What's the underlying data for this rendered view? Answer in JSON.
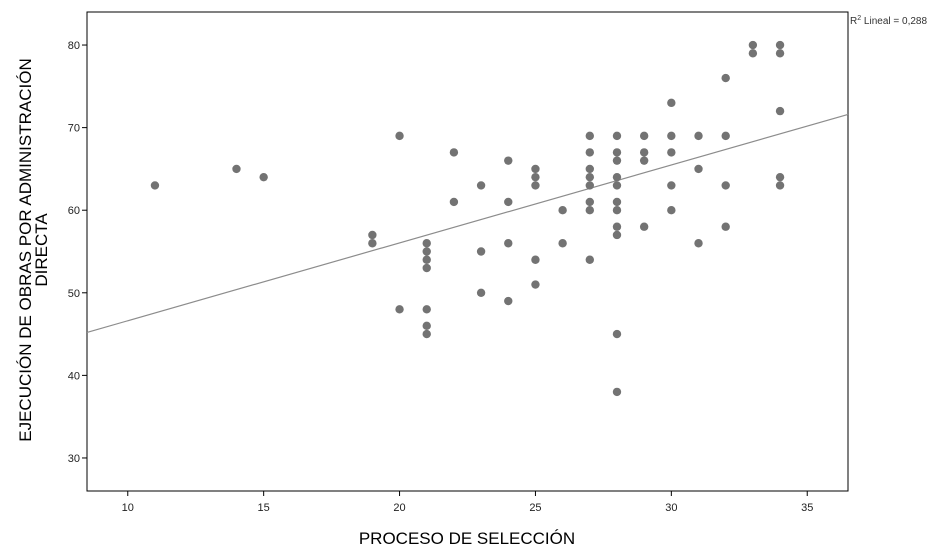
{
  "chart_data": {
    "type": "scatter",
    "xlabel": "PROCESO DE SELECCIÓN",
    "ylabel_lines": [
      "EJECUCIÓN DE OBRAS POR ADMINISTRACIÓN",
      "DIRECTA"
    ],
    "xlim": [
      8.5,
      36.5
    ],
    "ylim": [
      26,
      84
    ],
    "x_ticks": [
      10,
      15,
      20,
      25,
      30,
      35
    ],
    "y_ticks": [
      30,
      40,
      50,
      60,
      70,
      80
    ],
    "grid": false,
    "annotation": {
      "prefix": "R",
      "superscript": "2",
      "text": " Lineal = 0,288"
    },
    "fit_line": {
      "x_start": 8.5,
      "y_start": 45.2,
      "x_end": 36.5,
      "y_end": 71.6
    },
    "points": [
      [
        11,
        63
      ],
      [
        14,
        65
      ],
      [
        15,
        64
      ],
      [
        19,
        57
      ],
      [
        19,
        56
      ],
      [
        20,
        69
      ],
      [
        20,
        48
      ],
      [
        21,
        56
      ],
      [
        21,
        55
      ],
      [
        21,
        54
      ],
      [
        21,
        53
      ],
      [
        21,
        48
      ],
      [
        21,
        46
      ],
      [
        21,
        45
      ],
      [
        22,
        67
      ],
      [
        22,
        61
      ],
      [
        23,
        63
      ],
      [
        23,
        55
      ],
      [
        23,
        50
      ],
      [
        24,
        66
      ],
      [
        24,
        61
      ],
      [
        24,
        56
      ],
      [
        24,
        49
      ],
      [
        25,
        65
      ],
      [
        25,
        64
      ],
      [
        25,
        63
      ],
      [
        25,
        54
      ],
      [
        25,
        51
      ],
      [
        26,
        60
      ],
      [
        26,
        56
      ],
      [
        27,
        69
      ],
      [
        27,
        67
      ],
      [
        27,
        65
      ],
      [
        27,
        64
      ],
      [
        27,
        63
      ],
      [
        27,
        61
      ],
      [
        27,
        60
      ],
      [
        27,
        54
      ],
      [
        28,
        69
      ],
      [
        28,
        67
      ],
      [
        28,
        66
      ],
      [
        28,
        64
      ],
      [
        28,
        63
      ],
      [
        28,
        61
      ],
      [
        28,
        60
      ],
      [
        28,
        58
      ],
      [
        28,
        57
      ],
      [
        28,
        45
      ],
      [
        28,
        38
      ],
      [
        29,
        69
      ],
      [
        29,
        67
      ],
      [
        29,
        66
      ],
      [
        29,
        58
      ],
      [
        30,
        73
      ],
      [
        30,
        69
      ],
      [
        30,
        67
      ],
      [
        30,
        63
      ],
      [
        30,
        60
      ],
      [
        31,
        69
      ],
      [
        31,
        65
      ],
      [
        31,
        56
      ],
      [
        32,
        76
      ],
      [
        32,
        69
      ],
      [
        32,
        63
      ],
      [
        32,
        58
      ],
      [
        33,
        80
      ],
      [
        33,
        79
      ],
      [
        34,
        80
      ],
      [
        34,
        79
      ],
      [
        34,
        72
      ],
      [
        34,
        64
      ],
      [
        34,
        63
      ]
    ],
    "colors": {
      "point": "#737373",
      "line": "#8c8c8c",
      "frame": "#000000"
    }
  }
}
